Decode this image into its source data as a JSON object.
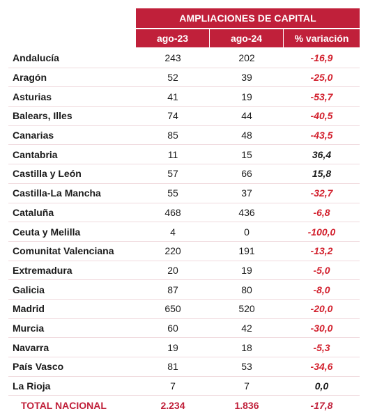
{
  "header": {
    "group_title": "AMPLIACIONES DE CAPITAL",
    "col_a": "ago-23",
    "col_b": "ago-24",
    "col_c": "% variación"
  },
  "rows": [
    {
      "name": "Andalucía",
      "a": "243",
      "b": "202",
      "v": "-16,9",
      "sign": "neg"
    },
    {
      "name": "Aragón",
      "a": "52",
      "b": "39",
      "v": "-25,0",
      "sign": "neg"
    },
    {
      "name": "Asturias",
      "a": "41",
      "b": "19",
      "v": "-53,7",
      "sign": "neg"
    },
    {
      "name": "Balears, Illes",
      "a": "74",
      "b": "44",
      "v": "-40,5",
      "sign": "neg"
    },
    {
      "name": "Canarias",
      "a": "85",
      "b": "48",
      "v": "-43,5",
      "sign": "neg"
    },
    {
      "name": "Cantabria",
      "a": "11",
      "b": "15",
      "v": "36,4",
      "sign": "pos"
    },
    {
      "name": "Castilla y León",
      "a": "57",
      "b": "66",
      "v": "15,8",
      "sign": "pos"
    },
    {
      "name": "Castilla-La Mancha",
      "a": "55",
      "b": "37",
      "v": "-32,7",
      "sign": "neg"
    },
    {
      "name": "Cataluña",
      "a": "468",
      "b": "436",
      "v": "-6,8",
      "sign": "neg"
    },
    {
      "name": "Ceuta y Melilla",
      "a": "4",
      "b": "0",
      "v": "-100,0",
      "sign": "neg"
    },
    {
      "name": "Comunitat Valenciana",
      "a": "220",
      "b": "191",
      "v": "-13,2",
      "sign": "neg"
    },
    {
      "name": "Extremadura",
      "a": "20",
      "b": "19",
      "v": "-5,0",
      "sign": "neg"
    },
    {
      "name": "Galicia",
      "a": "87",
      "b": "80",
      "v": "-8,0",
      "sign": "neg"
    },
    {
      "name": "Madrid",
      "a": "650",
      "b": "520",
      "v": "-20,0",
      "sign": "neg"
    },
    {
      "name": "Murcia",
      "a": "60",
      "b": "42",
      "v": "-30,0",
      "sign": "neg"
    },
    {
      "name": "Navarra",
      "a": "19",
      "b": "18",
      "v": "-5,3",
      "sign": "neg"
    },
    {
      "name": "País Vasco",
      "a": "81",
      "b": "53",
      "v": "-34,6",
      "sign": "neg"
    },
    {
      "name": "La Rioja",
      "a": "7",
      "b": "7",
      "v": "0,0",
      "sign": "pos"
    }
  ],
  "total": {
    "name": "TOTAL NACIONAL",
    "a": "2.234",
    "b": "1.836",
    "v": "-17,8"
  },
  "colors": {
    "accent": "#c0203a",
    "negative": "#d21f2c"
  }
}
